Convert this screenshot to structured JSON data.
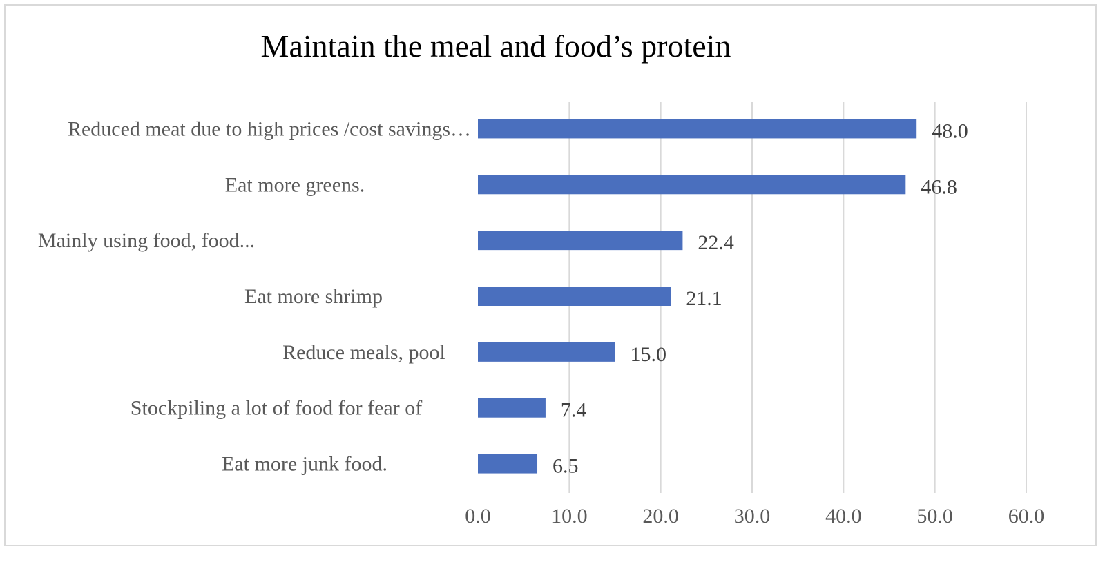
{
  "chart_data": {
    "type": "bar",
    "orientation": "horizontal",
    "title": "Maintain the meal and food’s protein",
    "xlabel": "",
    "ylabel": "",
    "categories": [
      "Reduced meat due to high prices /cost savings…",
      "Eat more greens.",
      "Mainly using food, food...",
      "Eat more shrimp",
      "Reduce meals, pool",
      "Stockpiling a lot of food for fear of",
      "Eat more junk food."
    ],
    "values": [
      48.0,
      46.8,
      22.4,
      21.1,
      15.0,
      7.4,
      6.5
    ],
    "value_labels": [
      "48.0",
      "46.8",
      "22.4",
      "21.1",
      "15.0",
      "7.4",
      "6.5"
    ],
    "xlim": [
      0,
      60
    ],
    "xticks": [
      0,
      10,
      20,
      30,
      40,
      50,
      60
    ],
    "xtick_labels": [
      "0.0",
      "10.0",
      "20.0",
      "30.0",
      "40.0",
      "50.0",
      "60.0"
    ],
    "grid": "vertical",
    "legend": "none",
    "bar_color": "#4a6fbe"
  }
}
